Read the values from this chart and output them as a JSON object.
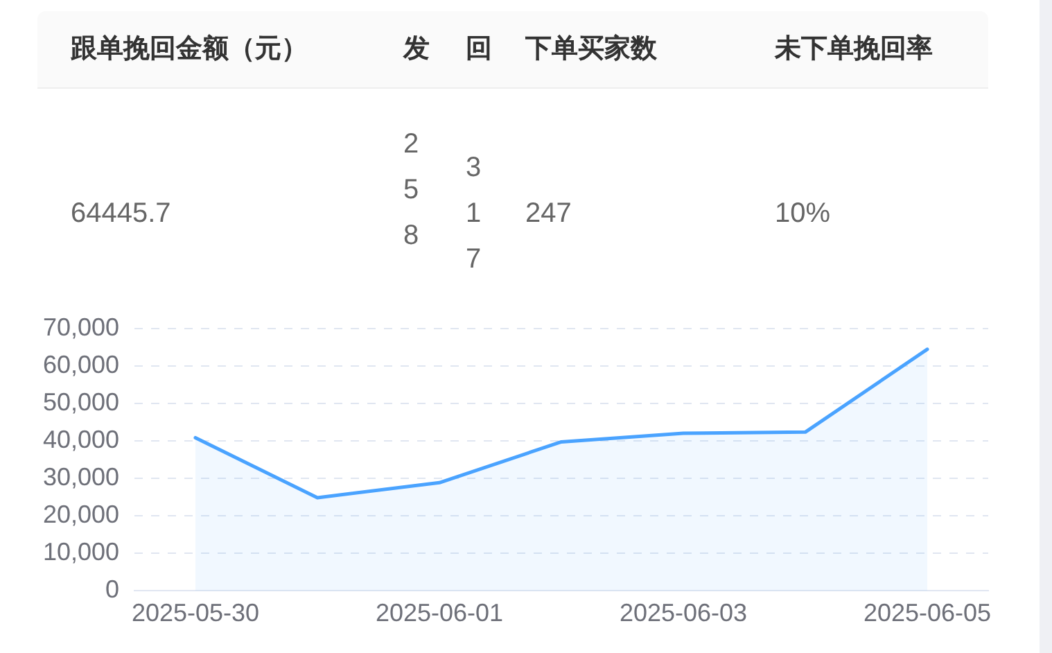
{
  "chart_data": [
    {
      "type": "other",
      "categories": [
        "跟单挽回金额（元）",
        "发",
        "回",
        "下单买家数",
        "未下单挽回率"
      ],
      "values": [
        64445.7,
        258,
        317,
        247,
        10
      ],
      "value_labels": [
        "64445.7",
        "258",
        "317",
        "247",
        "10%"
      ]
    },
    {
      "type": "area",
      "categories": [
        "2025-05-30",
        null,
        "2025-06-01",
        null,
        "2025-06-03",
        null,
        "2025-06-05"
      ],
      "values": [
        40800,
        24800,
        28800,
        39700,
        42000,
        42300,
        64400
      ],
      "color": "#4aa3ff",
      "ylim": [
        0,
        70000
      ],
      "yticks": [
        0,
        {
          "value": 10000,
          "label": "10,000"
        },
        {
          "value": 20000,
          "label": "20,000"
        },
        {
          "value": 30000,
          "label": "30,000"
        },
        {
          "value": 40000,
          "label": "40,000"
        },
        {
          "value": 50000,
          "label": "50,000"
        },
        {
          "value": 60000,
          "label": "60,000"
        },
        {
          "value": 70000,
          "label": "70,000"
        }
      ],
      "grid": "y"
    }
  ]
}
